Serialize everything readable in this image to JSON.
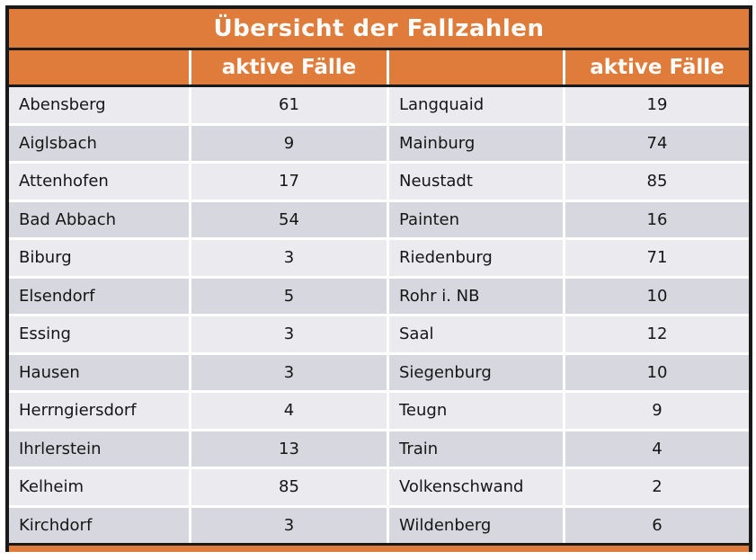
{
  "title": "Übersicht der Fallzahlen",
  "header": {
    "value_col_label": "aktive Fälle"
  },
  "rows": [
    {
      "left_name": "Abensberg",
      "left_value": 61,
      "right_name": "Langquaid",
      "right_value": 19
    },
    {
      "left_name": "Aiglsbach",
      "left_value": 9,
      "right_name": "Mainburg",
      "right_value": 74
    },
    {
      "left_name": "Attenhofen",
      "left_value": 17,
      "right_name": "Neustadt",
      "right_value": 85
    },
    {
      "left_name": "Bad Abbach",
      "left_value": 54,
      "right_name": "Painten",
      "right_value": 16
    },
    {
      "left_name": "Biburg",
      "left_value": 3,
      "right_name": "Riedenburg",
      "right_value": 71
    },
    {
      "left_name": "Elsendorf",
      "left_value": 5,
      "right_name": "Rohr i. NB",
      "right_value": 10
    },
    {
      "left_name": "Essing",
      "left_value": 3,
      "right_name": "Saal",
      "right_value": 12
    },
    {
      "left_name": "Hausen",
      "left_value": 3,
      "right_name": "Siegenburg",
      "right_value": 10
    },
    {
      "left_name": "Herrngiersdorf",
      "left_value": 4,
      "right_name": "Teugn",
      "right_value": 9
    },
    {
      "left_name": "Ihrlerstein",
      "left_value": 13,
      "right_name": "Train",
      "right_value": 4
    },
    {
      "left_name": "Kelheim",
      "left_value": 85,
      "right_name": "Volkenschwand",
      "right_value": 2
    },
    {
      "left_name": "Kirchdorf",
      "left_value": 3,
      "right_name": "Wildenberg",
      "right_value": 6
    }
  ],
  "colors": {
    "accent": "#e07c3b",
    "border": "#191919",
    "row_light": "#eaeaef",
    "row_dark": "#d7d7df",
    "header_text": "#ffffff",
    "body_text": "#161616"
  },
  "chart_data": {
    "type": "table",
    "title": "Übersicht der Fallzahlen",
    "column_headers": [
      "",
      "aktive Fälle",
      "",
      "aktive Fälle"
    ],
    "rows": [
      [
        "Abensberg",
        61,
        "Langquaid",
        19
      ],
      [
        "Aiglsbach",
        9,
        "Mainburg",
        74
      ],
      [
        "Attenhofen",
        17,
        "Neustadt",
        85
      ],
      [
        "Bad Abbach",
        54,
        "Painten",
        16
      ],
      [
        "Biburg",
        3,
        "Riedenburg",
        71
      ],
      [
        "Elsendorf",
        5,
        "Rohr i. NB",
        10
      ],
      [
        "Essing",
        3,
        "Saal",
        12
      ],
      [
        "Hausen",
        3,
        "Siegenburg",
        10
      ],
      [
        "Herrngiersdorf",
        4,
        "Teugn",
        9
      ],
      [
        "Ihrlerstein",
        13,
        "Train",
        4
      ],
      [
        "Kelheim",
        85,
        "Volkenschwand",
        2
      ],
      [
        "Kirchdorf",
        3,
        "Wildenberg",
        6
      ]
    ],
    "layout_hints": {
      "striped_rows": true,
      "header_background": "#e07c3b",
      "next_section_partially_visible": true
    }
  }
}
